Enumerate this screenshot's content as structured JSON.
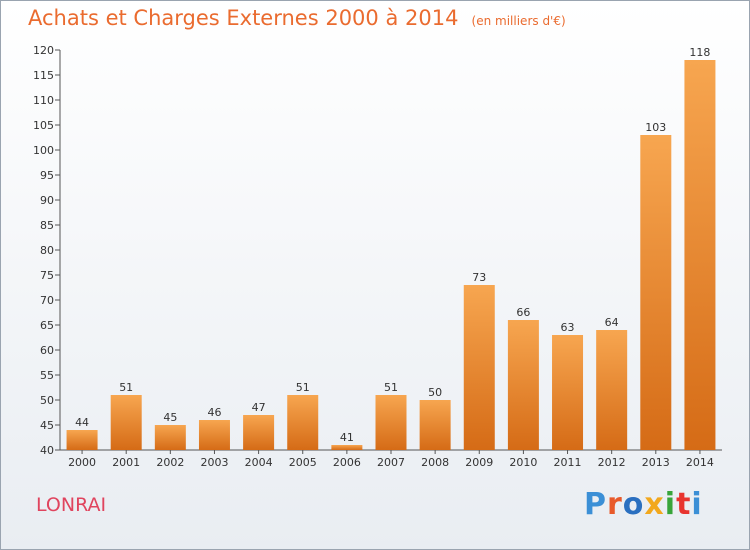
{
  "title": "Achats et Charges Externes 2000 à 2014",
  "subtitle": "(en milliers d'€)",
  "location": "LONRAI",
  "logo": {
    "text": "Proxiti",
    "colors": [
      "#3b8fd6",
      "#e85a2b",
      "#2a6fc0",
      "#f2a81d",
      "#38a53a",
      "#e8342f",
      "#3b8fd6"
    ]
  },
  "colors": {
    "bar_light": "#f7a650",
    "bar_dark": "#d56b16",
    "title": "#ea6b2f",
    "location": "#e0445e"
  },
  "chart_data": {
    "type": "bar",
    "categories": [
      "2000",
      "2001",
      "2002",
      "2003",
      "2004",
      "2005",
      "2006",
      "2007",
      "2008",
      "2009",
      "2010",
      "2011",
      "2012",
      "2013",
      "2014"
    ],
    "values": [
      44,
      51,
      45,
      46,
      47,
      51,
      41,
      51,
      50,
      73,
      66,
      63,
      64,
      103,
      118
    ],
    "ylim": [
      40,
      120
    ],
    "yticks": [
      40,
      45,
      50,
      55,
      60,
      65,
      70,
      75,
      80,
      85,
      90,
      95,
      100,
      105,
      110,
      115,
      120
    ],
    "grid": false,
    "title": "Achats et Charges Externes 2000 à 2014",
    "xlabel": "",
    "ylabel": ""
  }
}
